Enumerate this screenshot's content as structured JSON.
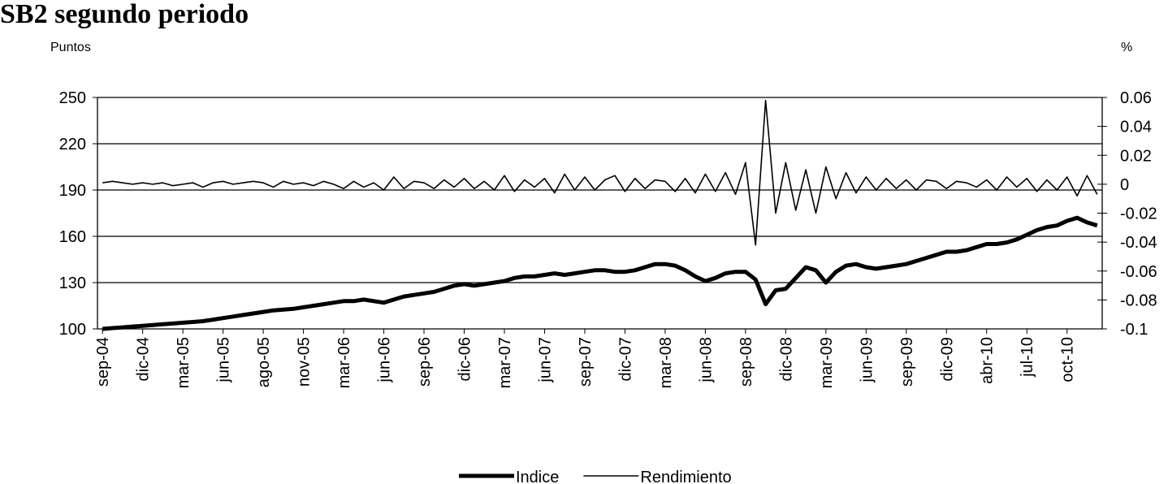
{
  "chart_data": {
    "type": "line",
    "title": "SB2 segundo periodo",
    "y_label": "Puntos",
    "y2_label": "%",
    "categories": [
      "sep-04",
      null,
      null,
      null,
      "dic-04",
      null,
      null,
      null,
      "mar-05",
      null,
      null,
      null,
      "jun-05",
      null,
      null,
      null,
      "ago-05",
      null,
      null,
      null,
      "nov-05",
      null,
      null,
      null,
      "mar-06",
      null,
      null,
      null,
      "jun-06",
      null,
      null,
      null,
      "sep-06",
      null,
      null,
      null,
      "dic-06",
      null,
      null,
      null,
      "mar-07",
      null,
      null,
      null,
      "jun-07",
      null,
      null,
      null,
      "sep-07",
      null,
      null,
      null,
      "dic-07",
      null,
      null,
      null,
      "mar-08",
      null,
      null,
      null,
      "jun-08",
      null,
      null,
      null,
      "sep-08",
      null,
      null,
      null,
      "dic-08",
      null,
      null,
      null,
      "mar-09",
      null,
      null,
      null,
      "jun-09",
      null,
      null,
      null,
      "sep-09",
      null,
      null,
      null,
      "dic-09",
      null,
      null,
      null,
      "abr-10",
      null,
      null,
      null,
      "jul-10",
      null,
      null,
      null,
      "oct-10",
      null,
      null,
      null
    ],
    "series": [
      {
        "name": "Indice",
        "color": "#000000",
        "values": [
          100,
          100.5,
          101,
          101.5,
          102,
          102.5,
          103,
          103.5,
          104,
          104.5,
          105,
          106,
          107,
          108,
          109,
          110,
          111,
          112,
          112.5,
          113,
          114,
          115,
          116,
          117,
          118,
          118,
          119,
          118,
          117,
          119,
          121,
          122,
          123,
          124,
          126,
          128,
          129,
          128,
          129,
          130,
          131,
          133,
          134,
          134,
          135,
          136,
          135,
          136,
          137,
          138,
          138,
          137,
          137,
          138,
          140,
          142,
          142,
          141,
          138,
          134,
          131,
          133,
          136,
          137,
          137,
          132,
          116,
          125,
          126,
          133,
          140,
          138,
          130,
          137,
          141,
          142,
          140,
          139,
          140,
          141,
          142,
          144,
          146,
          148,
          150,
          150,
          151,
          153,
          155,
          155,
          156,
          158,
          161,
          164,
          166,
          167,
          170,
          172,
          169,
          167
        ]
      },
      {
        "name": "Rendimiento",
        "color": "#000000",
        "axis": "y2",
        "values": [
          0.001,
          0.002,
          0.001,
          0,
          0.001,
          0,
          0.001,
          -0.001,
          0,
          0.001,
          -0.002,
          0.001,
          0.002,
          0,
          0.001,
          0.002,
          0.001,
          -0.002,
          0.002,
          0,
          0.001,
          -0.001,
          0.002,
          0,
          -0.003,
          0.002,
          -0.002,
          0.001,
          -0.004,
          0.005,
          -0.003,
          0.002,
          0.001,
          -0.003,
          0.003,
          -0.002,
          0.004,
          -0.003,
          0.002,
          -0.004,
          0.006,
          -0.005,
          0.003,
          -0.002,
          0.004,
          -0.006,
          0.007,
          -0.004,
          0.005,
          -0.004,
          0.003,
          0.006,
          -0.005,
          0.004,
          -0.003,
          0.003,
          0.002,
          -0.005,
          0.004,
          -0.006,
          0.007,
          -0.005,
          0.008,
          -0.007,
          0.015,
          -0.042,
          0.058,
          -0.02,
          0.015,
          -0.018,
          0.01,
          -0.02,
          0.012,
          -0.01,
          0.008,
          -0.006,
          0.005,
          -0.004,
          0.004,
          -0.003,
          0.003,
          -0.004,
          0.003,
          0.002,
          -0.003,
          0.002,
          0.001,
          -0.002,
          0.003,
          -0.004,
          0.005,
          -0.002,
          0.004,
          -0.005,
          0.003,
          -0.004,
          0.005,
          -0.008,
          0.006,
          -0.007
        ]
      }
    ],
    "ylim": [
      100,
      250
    ],
    "yticks": [
      100,
      130,
      160,
      190,
      220,
      250
    ],
    "y2lim": [
      -0.1,
      0.06
    ],
    "y2ticks": [
      -0.1,
      -0.08,
      -0.06,
      -0.04,
      -0.02,
      0,
      0.02,
      0.04,
      0.06
    ],
    "grid": true
  }
}
